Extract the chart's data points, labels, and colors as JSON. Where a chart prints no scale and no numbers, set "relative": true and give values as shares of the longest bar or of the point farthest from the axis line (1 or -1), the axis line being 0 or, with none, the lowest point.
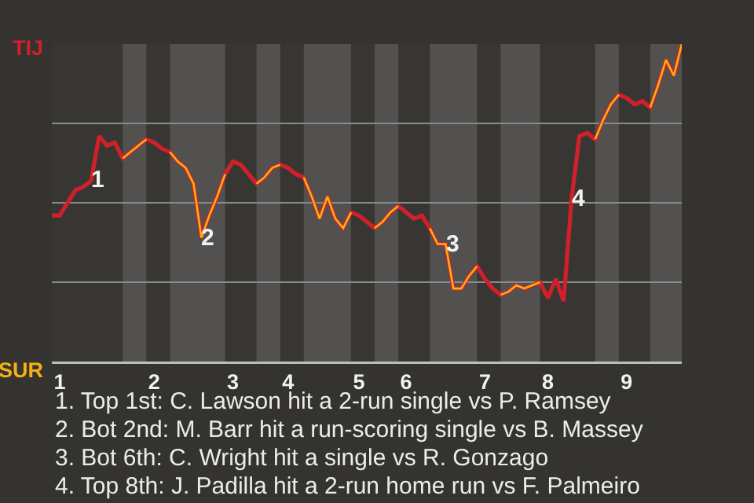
{
  "chart_data": {
    "type": "line",
    "relative": true,
    "categories": [
      null,
      "1",
      null,
      null,
      null,
      null,
      null,
      null,
      null,
      null,
      null,
      null,
      null,
      "2",
      null,
      null,
      null,
      null,
      null,
      null,
      null,
      null,
      null,
      "3",
      null,
      null,
      null,
      null,
      null,
      null,
      "4",
      null,
      null,
      null,
      null,
      null,
      null,
      null,
      null,
      "5",
      null,
      null,
      null,
      null,
      null,
      "6",
      null,
      null,
      null,
      null,
      null,
      null,
      null,
      null,
      null,
      "7",
      null,
      null,
      null,
      null,
      null,
      null,
      null,
      "8",
      null,
      null,
      null,
      null,
      null,
      null,
      null,
      null,
      null,
      "9",
      null,
      null,
      null,
      null,
      null,
      null,
      null
    ],
    "series": [
      {
        "name": "TIJ",
        "color": "#d0202a",
        "values": [
          0.46,
          0.46,
          0.5,
          0.54,
          0.55,
          0.57,
          0.71,
          0.68,
          0.69,
          0.64,
          0.66,
          0.68,
          0.7,
          0.69,
          0.67,
          0.66,
          0.63,
          0.61,
          0.56,
          0.39,
          0.46,
          0.52,
          0.59,
          0.63,
          0.62,
          0.59,
          0.56,
          0.58,
          0.61,
          0.62,
          0.61,
          0.59,
          0.58,
          0.52,
          0.45,
          0.52,
          0.45,
          0.42,
          0.47,
          0.46,
          0.44,
          0.42,
          0.44,
          0.47,
          0.49,
          0.47,
          0.45,
          0.46,
          0.42,
          0.37,
          0.37,
          0.23,
          0.23,
          0.27,
          0.3,
          0.26,
          0.23,
          0.21,
          0.22,
          0.24,
          0.23,
          0.24,
          0.25,
          0.2,
          0.26,
          0.19,
          0.51,
          0.71,
          0.72,
          0.7,
          0.76,
          0.81,
          0.84,
          0.83,
          0.81,
          0.82,
          0.8,
          0.87,
          0.95,
          0.9,
          1.0
        ]
      },
      {
        "name": "SUR",
        "color": "#f5b014",
        "values": [
          null,
          null,
          null,
          null,
          null,
          null,
          null,
          null,
          null,
          0.64,
          0.66,
          0.68,
          0.7,
          null,
          null,
          0.66,
          0.63,
          0.61,
          0.56,
          0.39,
          0.46,
          0.52,
          0.59,
          null,
          null,
          null,
          0.56,
          0.58,
          0.61,
          0.62,
          null,
          null,
          0.58,
          0.52,
          0.45,
          0.52,
          0.45,
          0.42,
          0.47,
          null,
          null,
          0.42,
          0.44,
          0.47,
          0.49,
          null,
          null,
          null,
          0.42,
          0.37,
          0.37,
          0.23,
          0.23,
          0.27,
          0.3,
          null,
          null,
          0.21,
          0.22,
          0.24,
          0.23,
          0.24,
          0.25,
          null,
          null,
          null,
          null,
          null,
          null,
          0.7,
          0.76,
          0.81,
          0.84,
          null,
          null,
          null,
          0.8,
          0.87,
          0.95,
          0.9,
          1.0
        ]
      }
    ],
    "grid": "y",
    "legend": false,
    "marker": "none",
    "line_style": "solid",
    "annotations": [
      {
        "text": "1",
        "y": 0.57
      },
      {
        "text": "2",
        "y": 0.39
      },
      {
        "text": "3",
        "y": 0.37
      },
      {
        "text": "4",
        "y": 0.51
      },
      "1. Top 1st: C. Lawson hit a 2-run single vs P. Ramsey",
      "2. Bot 2nd: M. Barr hit a run-scoring single vs B. Massey",
      "3. Bot 6th: C. Wright hit a single vs R. Gonzago",
      "4. Top 8th: J. Padilla hit a 2-run home run vs F. Palmeiro"
    ]
  }
}
